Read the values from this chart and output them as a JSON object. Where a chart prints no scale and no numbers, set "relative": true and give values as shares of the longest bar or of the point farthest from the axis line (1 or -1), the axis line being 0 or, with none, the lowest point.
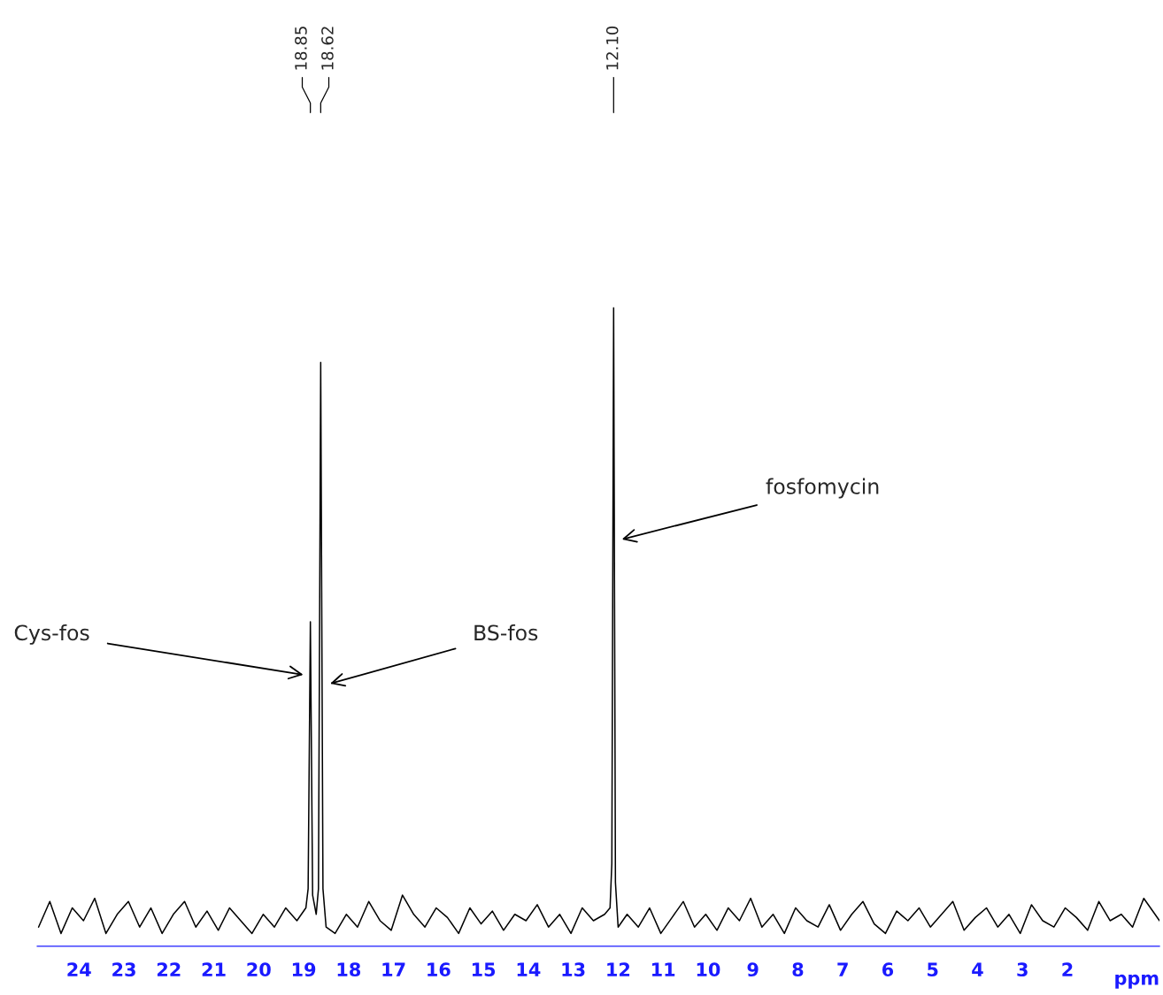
{
  "chart_data": {
    "type": "line",
    "relative": true,
    "xlabel": "ppm",
    "tick_labels": "x",
    "grid": false,
    "legend": false,
    "xlim": [
      24.93,
      -0.05
    ],
    "xticks": [
      24,
      23,
      22,
      21,
      20,
      19,
      18,
      17,
      16,
      15,
      14,
      13,
      12,
      11,
      10,
      9,
      8,
      7,
      6,
      5,
      4,
      3,
      2
    ],
    "series": [
      {
        "color": "#000000",
        "x": [
          24.9,
          24.65,
          24.4,
          24.15,
          23.9,
          23.65,
          23.4,
          23.15,
          22.9,
          22.65,
          22.4,
          22.15,
          21.9,
          21.65,
          21.4,
          21.15,
          20.9,
          20.65,
          20.4,
          20.15,
          19.9,
          19.65,
          19.4,
          19.15,
          18.95,
          18.9,
          18.85,
          18.8,
          18.72,
          18.67,
          18.62,
          18.57,
          18.5,
          18.3,
          18.05,
          17.8,
          17.55,
          17.3,
          17.05,
          16.8,
          16.55,
          16.3,
          16.05,
          15.8,
          15.55,
          15.3,
          15.05,
          14.8,
          14.55,
          14.3,
          14.05,
          13.8,
          13.55,
          13.3,
          13.05,
          12.8,
          12.55,
          12.3,
          12.18,
          12.14,
          12.1,
          12.06,
          12.0,
          11.8,
          11.55,
          11.3,
          11.05,
          10.8,
          10.55,
          10.3,
          10.05,
          9.8,
          9.55,
          9.3,
          9.05,
          8.8,
          8.55,
          8.3,
          8.05,
          7.8,
          7.55,
          7.3,
          7.05,
          6.8,
          6.55,
          6.3,
          6.05,
          5.8,
          5.55,
          5.3,
          5.05,
          4.8,
          4.55,
          4.3,
          4.05,
          3.8,
          3.55,
          3.3,
          3.05,
          2.8,
          2.55,
          2.3,
          2.05,
          1.8,
          1.55,
          1.3,
          1.05,
          0.8,
          0.55,
          0.3,
          0.05,
          -0.05
        ],
        "values": [
          0.03,
          0.07,
          0.02,
          0.06,
          0.04,
          0.075,
          0.02,
          0.05,
          0.07,
          0.03,
          0.06,
          0.02,
          0.05,
          0.07,
          0.03,
          0.055,
          0.025,
          0.06,
          0.04,
          0.02,
          0.05,
          0.03,
          0.06,
          0.04,
          0.06,
          0.09,
          0.508,
          0.08,
          0.05,
          0.09,
          0.914,
          0.09,
          0.03,
          0.02,
          0.05,
          0.03,
          0.07,
          0.04,
          0.025,
          0.08,
          0.05,
          0.03,
          0.06,
          0.045,
          0.02,
          0.06,
          0.035,
          0.055,
          0.025,
          0.05,
          0.04,
          0.065,
          0.03,
          0.05,
          0.02,
          0.06,
          0.04,
          0.05,
          0.06,
          0.13,
          1,
          0.1,
          0.03,
          0.05,
          0.03,
          0.06,
          0.02,
          0.045,
          0.07,
          0.03,
          0.05,
          0.025,
          0.06,
          0.04,
          0.075,
          0.03,
          0.05,
          0.02,
          0.06,
          0.04,
          0.03,
          0.065,
          0.025,
          0.05,
          0.07,
          0.035,
          0.02,
          0.055,
          0.04,
          0.06,
          0.03,
          0.05,
          0.07,
          0.025,
          0.045,
          0.06,
          0.03,
          0.05,
          0.02,
          0.065,
          0.04,
          0.03,
          0.06,
          0.045,
          0.025,
          0.07,
          0.04,
          0.05,
          0.03,
          0.075,
          0.05,
          0.04
        ]
      }
    ],
    "annotations": [
      "18.85",
      "18.62",
      "12.10",
      "Cys-fos",
      "BS-fos",
      "fosfomycin"
    ]
  }
}
